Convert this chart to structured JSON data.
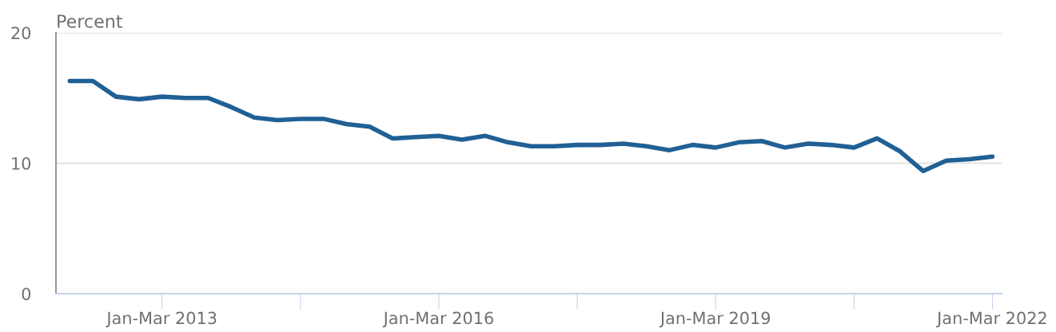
{
  "chart_data": {
    "type": "line",
    "ylabel": "Percent",
    "categories": [
      null,
      null,
      null,
      null,
      "Jan-Mar 2013",
      null,
      null,
      null,
      null,
      null,
      null,
      null,
      null,
      null,
      null,
      null,
      "Jan-Mar 2016",
      null,
      null,
      null,
      null,
      null,
      null,
      null,
      null,
      null,
      null,
      null,
      "Jan-Mar 2019",
      null,
      null,
      null,
      null,
      null,
      null,
      null,
      null,
      null,
      null,
      null,
      "Jan-Mar 2022"
    ],
    "series": [
      {
        "color": "#206095",
        "values": [
          16.3,
          16.3,
          15.1,
          14.9,
          15.1,
          15.0,
          15.0,
          14.3,
          13.5,
          13.3,
          13.4,
          13.4,
          13.0,
          12.8,
          11.9,
          12.0,
          12.1,
          11.8,
          12.1,
          11.6,
          11.3,
          11.3,
          11.4,
          11.4,
          11.5,
          11.3,
          11.0,
          11.4,
          11.2,
          11.6,
          11.7,
          11.2,
          11.5,
          11.4,
          11.2,
          11.9,
          10.9,
          9.4,
          10.2,
          10.3,
          10.5
        ]
      }
    ],
    "ylim": [
      0,
      20
    ],
    "yticks": [
      0,
      10,
      20
    ],
    "grid": "y",
    "legend": false,
    "marker": "none",
    "line_style": "solid"
  }
}
